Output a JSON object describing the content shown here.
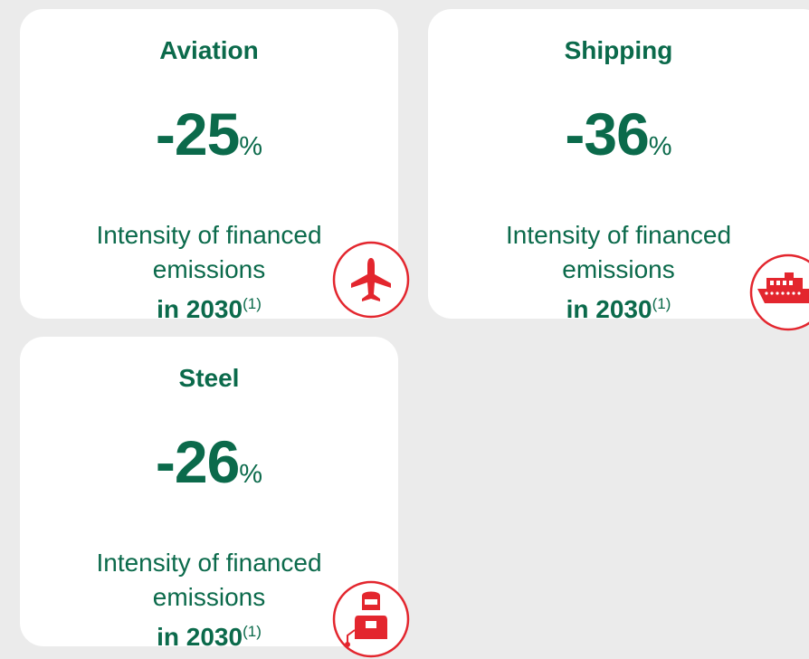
{
  "cards": [
    {
      "title": "Aviation",
      "value": "-25",
      "unit": "%",
      "description_lines": [
        "Intensity of financed",
        "emissions"
      ],
      "year": "in 2030",
      "note": "(1)"
    },
    {
      "title": "Shipping",
      "value": "-36",
      "unit": "%",
      "description_lines": [
        "Intensity of financed",
        "emissions"
      ],
      "year": "in 2030",
      "note": "(1)"
    },
    {
      "title": "Steel",
      "value": "-26",
      "unit": "%",
      "description_lines": [
        "Intensity of financed",
        "emissions"
      ],
      "year": "in 2030",
      "note": "(1)"
    }
  ]
}
